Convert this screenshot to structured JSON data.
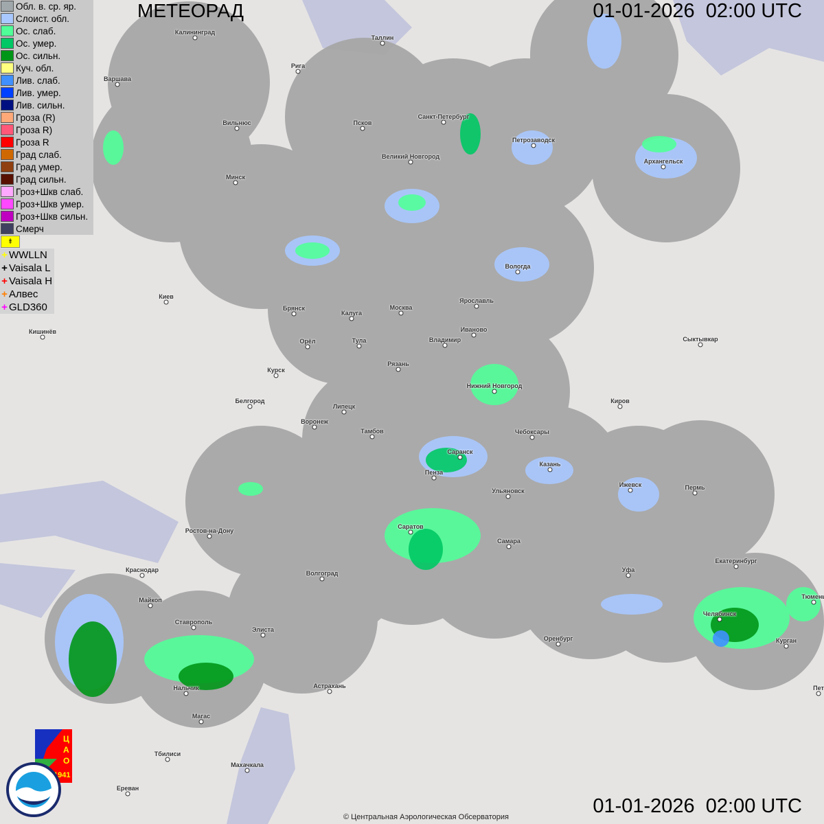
{
  "header": {
    "title": "МЕТЕОРАД",
    "timestamp_top": "01-01-2026  02:00 UTC",
    "timestamp_bottom": "01-01-2026  02:00 UTC"
  },
  "legend": [
    {
      "label": "Обл. в. ср. яр.",
      "color": "#a0a8ac"
    },
    {
      "label": "Слоист. обл.",
      "color": "#a8c8ff"
    },
    {
      "label": "Ос. слаб.",
      "color": "#50ff98"
    },
    {
      "label": "Ос. умер.",
      "color": "#00c864"
    },
    {
      "label": "Ос. сильн.",
      "color": "#009618"
    },
    {
      "label": "Куч. обл.",
      "color": "#ffff80"
    },
    {
      "label": "Лив. слаб.",
      "color": "#4090ff"
    },
    {
      "label": "Лив. умер.",
      "color": "#0040ff"
    },
    {
      "label": "Лив. сильн.",
      "color": "#001080"
    },
    {
      "label": "Гроза (R)",
      "color": "#ffa878"
    },
    {
      "label": "Гроза R)",
      "color": "#ff5878"
    },
    {
      "label": "Гроза R",
      "color": "#ff0000"
    },
    {
      "label": "Град слаб.",
      "color": "#d06800"
    },
    {
      "label": "Град умер.",
      "color": "#904010"
    },
    {
      "label": "Град сильн.",
      "color": "#581000"
    },
    {
      "label": "Гроз+Шкв слаб.",
      "color": "#ffa8ff"
    },
    {
      "label": "Гроз+Шкв умер.",
      "color": "#ff48ff"
    },
    {
      "label": "Гроз+Шкв сильн.",
      "color": "#c000c0"
    },
    {
      "label": "Смерч",
      "color": "#404060"
    }
  ],
  "flag_icon": "flag-icon",
  "lightning_sources": [
    {
      "label": "WWLLN",
      "color": "#ffff00"
    },
    {
      "label": "Vaisala L",
      "color": "#000000"
    },
    {
      "label": "Vaisala H",
      "color": "#ff0000"
    },
    {
      "label": "Алвес",
      "color": "#ff8000"
    },
    {
      "label": "GLD360",
      "color": "#ff00ff"
    }
  ],
  "cities": [
    "Калининград",
    "Таллин",
    "Рига",
    "Варшава",
    "Санкт-Петербург",
    "Вильнюс",
    "Псков",
    "Петрозаводск",
    "Великий Новгород",
    "Архангельск",
    "Минск",
    "Вологда",
    "Москва",
    "Ярославль",
    "Брянск",
    "Калуга",
    "Киев",
    "Иваново",
    "Кишинёв",
    "Орёл",
    "Тула",
    "Владимир",
    "Сыктывкар",
    "Рязань",
    "Курск",
    "Нижний Новгород",
    "Белгород",
    "Липецк",
    "Киров",
    "Воронеж",
    "Тамбов",
    "Чебоксары",
    "Саранск",
    "Пенза",
    "Казань",
    "Ижевск",
    "Пермь",
    "Ульяновск",
    "Ростов-на-Дону",
    "Саратов",
    "Самара",
    "Краснодар",
    "Екатеринбург",
    "Волгоград",
    "Уфа",
    "Майкоп",
    "Тюмень",
    "Челябинск",
    "Ставрополь",
    "Элиста",
    "Оренбург",
    "Курган",
    "Нальчик",
    "Астрахань",
    "Магас",
    "Тбилиси",
    "Махачкала",
    "Ереван",
    "Пет"
  ],
  "logos": {
    "cao": "ЦАО 1941",
    "roshydromet": "РОСГИДРОМЕТ ROSHYDROMET"
  },
  "copyright": "© Центральная Аэрологическая Обсерватория"
}
